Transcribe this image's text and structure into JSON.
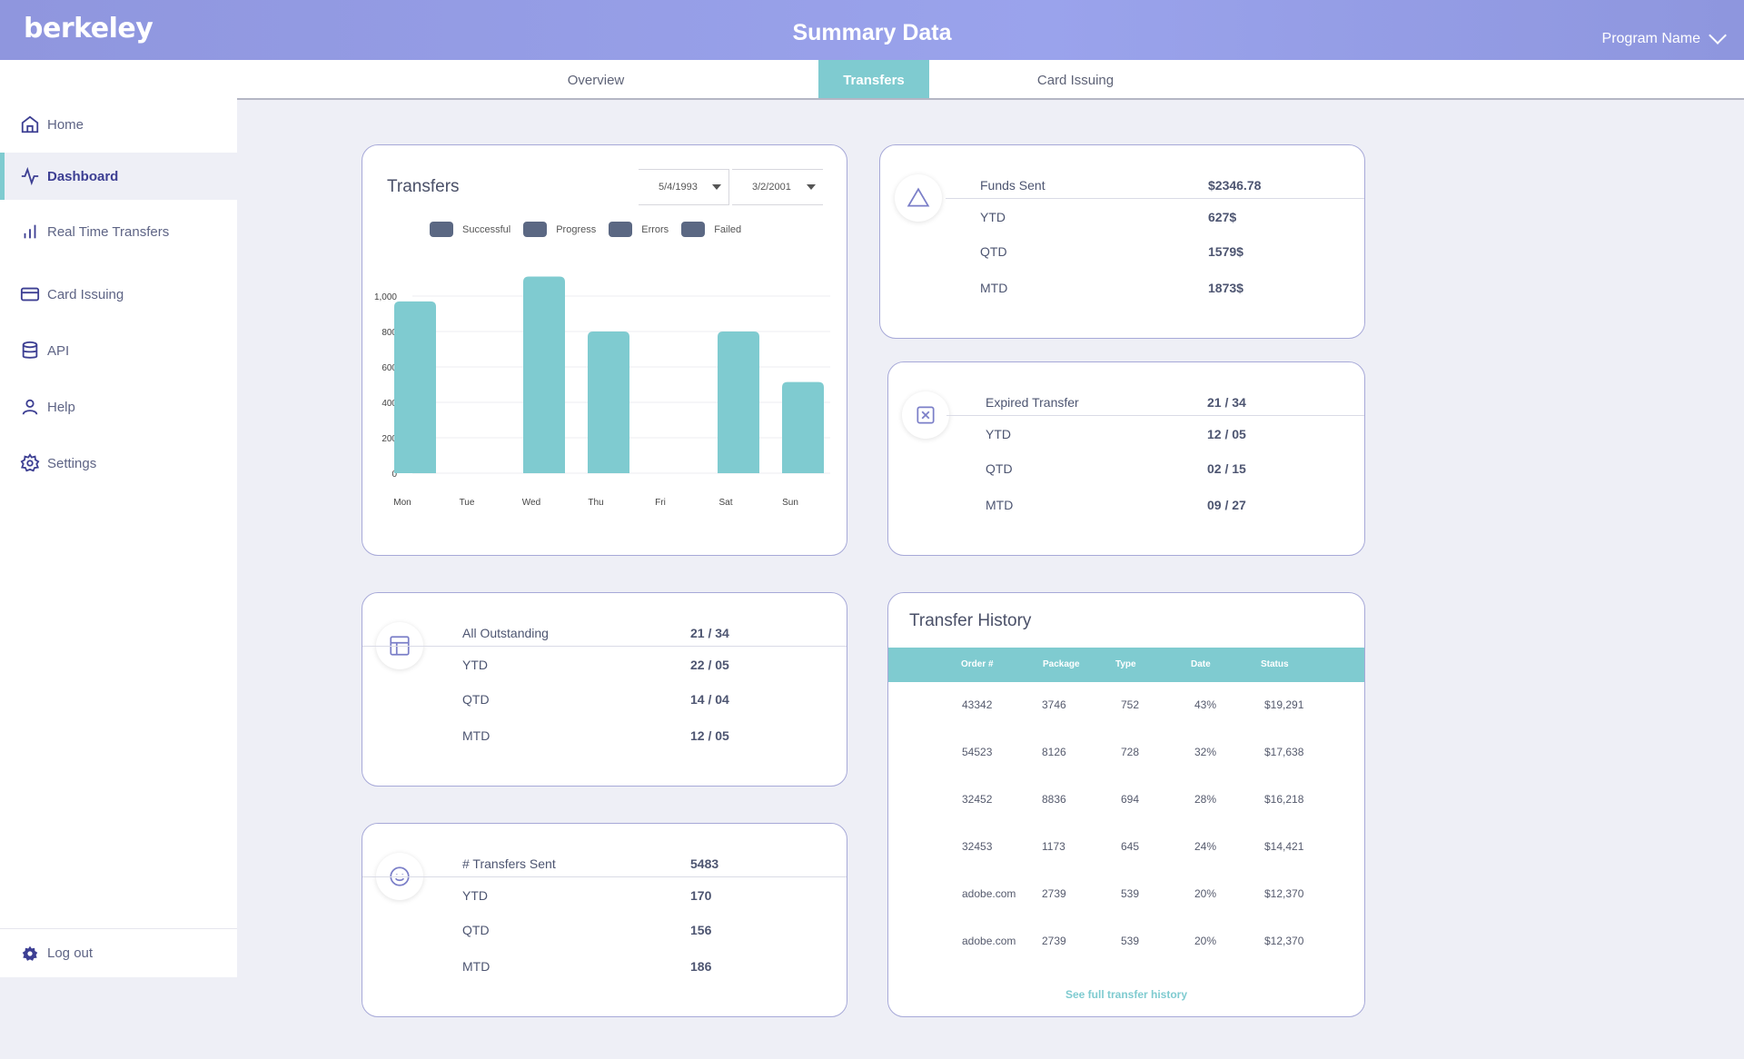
{
  "header": {
    "logo": "berkeley",
    "title": "Summary Data",
    "program_name": "Program Name"
  },
  "tabs": [
    {
      "label": "Overview",
      "active": false
    },
    {
      "label": "Transfers",
      "active": true
    },
    {
      "label": "Card Issuing",
      "active": false
    }
  ],
  "sidebar": {
    "items": [
      {
        "label": "Home",
        "icon": "home-icon"
      },
      {
        "label": "Dashboard",
        "icon": "activity-icon",
        "active": true
      },
      {
        "label": "Real Time Transfers",
        "icon": "bar-chart-icon"
      },
      {
        "label": "Card Issuing",
        "icon": "credit-card-icon"
      },
      {
        "label": "API",
        "icon": "database-icon"
      },
      {
        "label": "Help",
        "icon": "user-icon"
      },
      {
        "label": "Settings",
        "icon": "gear-icon"
      }
    ],
    "logout": "Log out"
  },
  "transfers_chart": {
    "title": "Transfers",
    "date_from": "5/4/1993",
    "date_to": "3/2/2001",
    "legend": [
      "Successful",
      "Progress",
      "Errors",
      "Failed"
    ]
  },
  "chart_data": {
    "type": "bar",
    "title": "Transfers",
    "categories": [
      "Mon",
      "Tue",
      "Wed",
      "Thu",
      "Fri",
      "Sat",
      "Sun"
    ],
    "values": [
      970,
      null,
      1110,
      800,
      null,
      800,
      515
    ],
    "yticks": [
      "0",
      "200",
      "400",
      "600",
      "800",
      "1,000"
    ],
    "ylim": [
      0,
      1110
    ],
    "legend": [
      "Successful",
      "Progress",
      "Errors",
      "Failed"
    ],
    "grid": true
  },
  "funds_sent": {
    "label": "Funds Sent",
    "value": "$2346.78",
    "rows": [
      {
        "label": "YTD",
        "value": "627$"
      },
      {
        "label": "QTD",
        "value": "1579$"
      },
      {
        "label": "MTD",
        "value": "1873$"
      }
    ]
  },
  "expired_transfer": {
    "label": "Expired Transfer",
    "value": "21 / 34",
    "rows": [
      {
        "label": "YTD",
        "value": "12 / 05"
      },
      {
        "label": "QTD",
        "value": "02 / 15"
      },
      {
        "label": "MTD",
        "value": "09 / 27"
      }
    ]
  },
  "all_outstanding": {
    "label": "All Outstanding",
    "value": "21 / 34",
    "rows": [
      {
        "label": "YTD",
        "value": "22 / 05"
      },
      {
        "label": "QTD",
        "value": "14 / 04"
      },
      {
        "label": "MTD",
        "value": "12 / 05"
      }
    ]
  },
  "transfers_sent": {
    "label": "# Transfers Sent",
    "value": "5483",
    "rows": [
      {
        "label": "YTD",
        "value": "170"
      },
      {
        "label": "QTD",
        "value": "156"
      },
      {
        "label": "MTD",
        "value": "186"
      }
    ]
  },
  "transfer_history": {
    "title": "Transfer History",
    "columns": [
      "Order #",
      "Package",
      "Type",
      "Date",
      "Status"
    ],
    "rows": [
      [
        "43342",
        "3746",
        "752",
        "43%",
        "$19,291"
      ],
      [
        "54523",
        "8126",
        "728",
        "32%",
        "$17,638"
      ],
      [
        "32452",
        "8836",
        "694",
        "28%",
        "$16,218"
      ],
      [
        "32453",
        "1173",
        "645",
        "24%",
        "$14,421"
      ],
      [
        "adobe.com",
        "2739",
        "539",
        "20%",
        "$12,370"
      ],
      [
        "adobe.com",
        "2739",
        "539",
        "20%",
        "$12,370"
      ]
    ],
    "see_all": "See full transfer history"
  }
}
